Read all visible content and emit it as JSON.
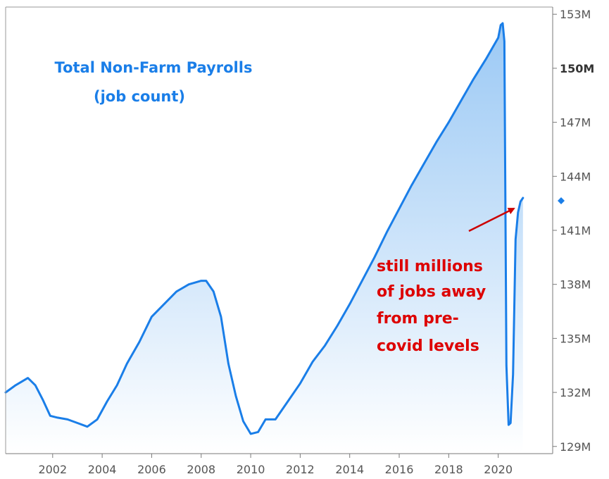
{
  "chart_data": {
    "type": "area",
    "title": "Total Non-Farm Payrolls",
    "subtitle": "(job count)",
    "xlabel": "",
    "ylabel": "",
    "xlim": [
      2000.1,
      2022.2
    ],
    "ylim": [
      128.6,
      153.4
    ],
    "x_ticks": [
      2002,
      2004,
      2006,
      2008,
      2010,
      2012,
      2014,
      2016,
      2018,
      2020
    ],
    "y_ticks": [
      {
        "value": 129,
        "label": "129M"
      },
      {
        "value": 132,
        "label": "132M"
      },
      {
        "value": 135,
        "label": "135M"
      },
      {
        "value": 138,
        "label": "138M"
      },
      {
        "value": 141,
        "label": "141M"
      },
      {
        "value": 144,
        "label": "144M"
      },
      {
        "value": 147,
        "label": "147M"
      },
      {
        "value": 150,
        "label": "150M",
        "bold": true
      },
      {
        "value": 153,
        "label": "153M"
      }
    ],
    "series": [
      {
        "line_color": "#1a7ee8",
        "x": [
          2000.1,
          2000.5,
          2001.0,
          2001.3,
          2001.6,
          2001.9,
          2002.2,
          2002.6,
          2003.0,
          2003.4,
          2003.8,
          2004.2,
          2004.6,
          2005.0,
          2005.5,
          2006.0,
          2006.5,
          2007.0,
          2007.5,
          2008.0,
          2008.2,
          2008.5,
          2008.8,
          2009.1,
          2009.4,
          2009.7,
          2010.0,
          2010.3,
          2010.6,
          2011.0,
          2011.5,
          2012.0,
          2012.5,
          2013.0,
          2013.5,
          2014.0,
          2014.5,
          2015.0,
          2015.5,
          2016.0,
          2016.5,
          2017.0,
          2017.5,
          2018.0,
          2018.5,
          2019.0,
          2019.5,
          2020.0,
          2020.1,
          2020.18,
          2020.25,
          2020.33,
          2020.42,
          2020.5,
          2020.6,
          2020.7,
          2020.8,
          2020.9,
          2021.0
        ],
        "values": [
          132.0,
          132.4,
          132.8,
          132.4,
          131.6,
          130.7,
          130.6,
          130.5,
          130.3,
          130.1,
          130.5,
          131.5,
          132.4,
          133.6,
          134.8,
          136.2,
          136.9,
          137.6,
          138.0,
          138.2,
          138.2,
          137.6,
          136.2,
          133.6,
          131.8,
          130.4,
          129.7,
          129.8,
          130.5,
          130.5,
          131.5,
          132.5,
          133.7,
          134.6,
          135.7,
          136.9,
          138.2,
          139.5,
          140.9,
          142.2,
          143.5,
          144.7,
          145.9,
          147.0,
          148.2,
          149.4,
          150.5,
          151.7,
          152.4,
          152.5,
          151.5,
          133.5,
          130.2,
          130.3,
          133.0,
          140.5,
          142.0,
          142.6,
          142.8
        ]
      }
    ],
    "annotation": {
      "lines": [
        "still millions",
        "of jobs away",
        "from pre-",
        "covid levels"
      ],
      "color": "#dd0000"
    },
    "current_value_marker": 142.8,
    "grid": false,
    "legend": "none"
  }
}
